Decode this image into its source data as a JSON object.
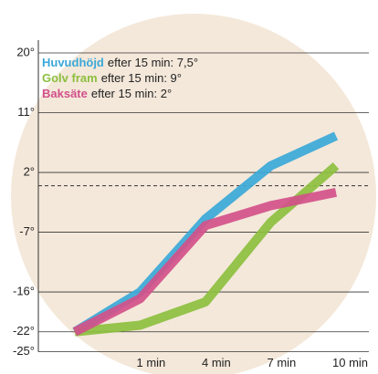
{
  "chart_data": {
    "type": "line",
    "categories": [
      null,
      "1 min",
      "4 min",
      "7 min",
      "10 min"
    ],
    "series": [
      {
        "name": "Huvudhöjd",
        "legend_note": "efter 15 min: 7,5°",
        "color": "#3aa8d8",
        "values": [
          -22,
          -16,
          -5,
          3,
          7.5
        ]
      },
      {
        "name": "Golv fram",
        "legend_note": "efter 15 min: 9°",
        "color": "#8cbf3f",
        "values": [
          -22,
          -21,
          -17.5,
          -5.5,
          3
        ]
      },
      {
        "name": "Baksäte",
        "legend_note": "efter 15 min: 2°",
        "color": "#d2508a",
        "values": [
          -22,
          -17,
          -6,
          -3,
          -1
        ]
      }
    ],
    "ylim": [
      -25,
      20
    ],
    "yticks": [
      {
        "value": 20,
        "label": "20°"
      },
      {
        "value": 11,
        "label": "11°"
      },
      {
        "value": 2,
        "label": "2°"
      },
      {
        "value": -7,
        "label": "-7°"
      },
      {
        "value": -16,
        "label": "-16°"
      },
      {
        "value": -22,
        "label": "-22°"
      },
      {
        "value": -25,
        "label": "-25°"
      }
    ],
    "reference_line": 0,
    "grid": true
  }
}
